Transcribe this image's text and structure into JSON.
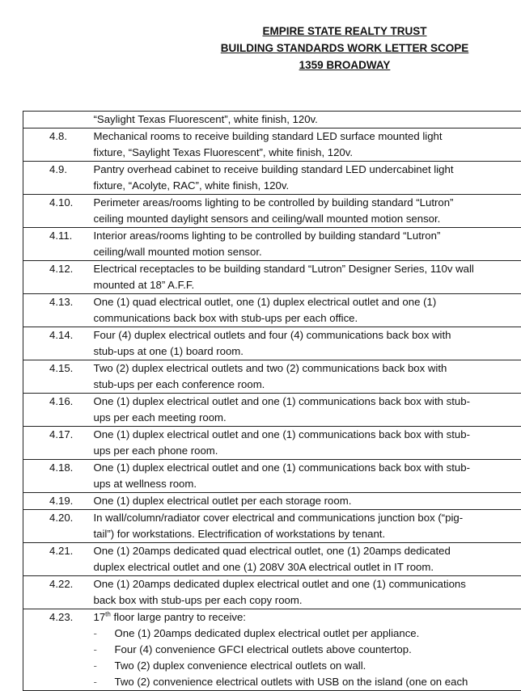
{
  "header": {
    "line1": "EMPIRE STATE REALTY TRUST",
    "line2": "BUILDING STANDARDS WORK LETTER SCOPE",
    "line3": "1359 BROADWAY"
  },
  "rows": [
    {
      "num": "",
      "lines": [
        "“Saylight Texas Fluorescent”, white finish, 120v."
      ]
    },
    {
      "num": "4.8.",
      "lines": [
        "Mechanical rooms to receive building standard LED surface mounted light",
        "fixture, “Saylight Texas Fluorescent”, white finish, 120v."
      ]
    },
    {
      "num": "4.9.",
      "lines": [
        "Pantry overhead cabinet to receive building standard LED undercabinet light",
        "fixture, “Acolyte, RAC”, white finish, 120v."
      ]
    },
    {
      "num": "4.10.",
      "lines": [
        " Perimeter areas/rooms lighting to be controlled by building standard “Lutron”",
        "ceiling mounted daylight sensors and ceiling/wall mounted motion sensor."
      ]
    },
    {
      "num": "4.11.",
      "lines": [
        "Interior areas/rooms lighting to be controlled by building standard “Lutron”",
        "ceiling/wall mounted motion sensor."
      ]
    },
    {
      "num": "4.12.",
      "lines": [
        "Electrical receptacles to be building standard “Lutron” Designer Series, 110v wall",
        "mounted at 18” A.F.F."
      ]
    },
    {
      "num": "4.13.",
      "lines": [
        "One (1) quad electrical outlet, one (1) duplex electrical outlet and one (1)",
        "communications back box with stub-ups per each office."
      ]
    },
    {
      "num": "4.14.",
      "lines": [
        "Four (4) duplex electrical outlets and four (4) communications back box with",
        "stub-ups at one (1) board room."
      ]
    },
    {
      "num": "4.15.",
      "lines": [
        "Two (2) duplex electrical outlets and two (2) communications back box with",
        "stub-ups per each conference room."
      ]
    },
    {
      "num": "4.16.",
      "lines": [
        "One (1) duplex electrical outlet and one (1) communications back box with stub-",
        "ups per each meeting room."
      ]
    },
    {
      "num": "4.17.",
      "lines": [
        "One (1) duplex electrical outlet and one (1) communications back box with stub-",
        "ups per each phone room."
      ]
    },
    {
      "num": "4.18.",
      "lines": [
        "One (1) duplex electrical outlet and one (1) communications back box with stub-",
        "ups at wellness room."
      ]
    },
    {
      "num": "4.19.",
      "lines": [
        "One (1) duplex electrical outlet per each storage room."
      ]
    },
    {
      "num": "4.20.",
      "lines": [
        "In wall/column/radiator cover electrical and communications junction box (“pig-",
        "tail”) for workstations. Electrification of workstations by tenant."
      ]
    },
    {
      "num": "4.21.",
      "lines": [
        "One (1) 20amps dedicated quad electrical outlet, one (1) 20amps dedicated",
        "duplex electrical outlet and one (1) 208V 30A electrical outlet in IT room."
      ]
    },
    {
      "num": "4.22.",
      "lines": [
        "One (1) 20amps dedicated duplex electrical outlet and one (1) communications",
        "back box with stub-ups per each copy room."
      ]
    }
  ],
  "last_row": {
    "num": "4.23.",
    "intro_pre": "17",
    "intro_sup": "th",
    "intro_post": " floor large pantry to receive:",
    "bullets": [
      "One (1) 20amps dedicated duplex electrical outlet per appliance.",
      "Four (4) convenience GFCI electrical outlets above countertop.",
      "Two (2) duplex convenience electrical outlets on wall.",
      "Two (2) convenience electrical outlets with USB on the island (one on each"
    ]
  }
}
